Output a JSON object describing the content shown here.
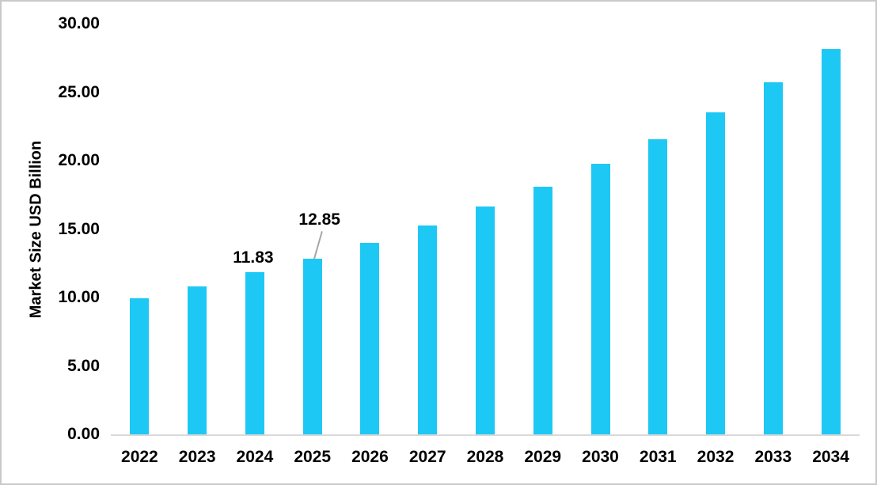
{
  "chart_data": {
    "type": "bar",
    "title": "",
    "xlabel": "",
    "ylabel": "Market Size USD Billion",
    "categories": [
      "2022",
      "2023",
      "2024",
      "2025",
      "2026",
      "2027",
      "2028",
      "2029",
      "2030",
      "2031",
      "2032",
      "2033",
      "2034"
    ],
    "values": [
      9.95,
      10.8,
      11.83,
      12.85,
      14.02,
      15.28,
      16.65,
      18.1,
      19.78,
      21.56,
      23.52,
      25.72,
      28.15
    ],
    "ylim": [
      0,
      30
    ],
    "yticks": [
      0,
      5,
      10,
      15,
      20,
      25,
      30
    ],
    "ytick_labels": [
      "0.00",
      "5.00",
      "10.00",
      "15.00",
      "20.00",
      "25.00",
      "30.00"
    ],
    "grid": false,
    "legend": null,
    "annotations": [
      {
        "category": "2024",
        "text": "11.83",
        "leader": false
      },
      {
        "category": "2025",
        "text": "12.85",
        "leader": true
      }
    ],
    "colors": {
      "bar_fill": "#1EC8F5",
      "axis_line": "#D9D9D9",
      "leader_line": "#A6A6A6",
      "text": "#000000",
      "frame_border": "#C9C9C9",
      "background": "#FFFFFF"
    }
  }
}
